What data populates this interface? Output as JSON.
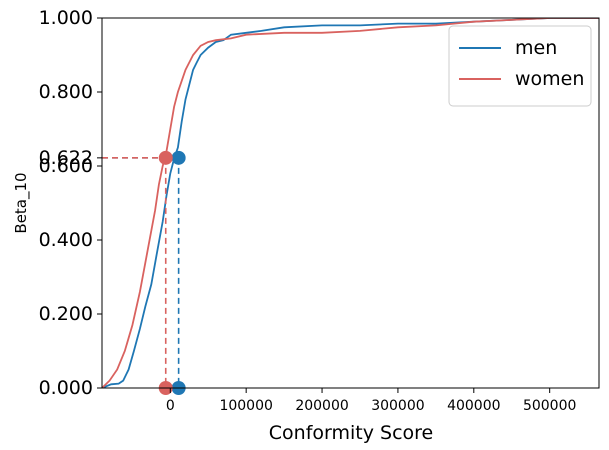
{
  "chart_data": {
    "type": "line",
    "title": "",
    "xlabel": "Conformity Score",
    "ylabel": "Beta_10",
    "xlim": [
      -90000,
      565000
    ],
    "ylim": [
      0,
      1
    ],
    "x_ticks": [
      {
        "value": 0,
        "label": "0"
      },
      {
        "value": 100000,
        "label": "100000"
      },
      {
        "value": 200000,
        "label": "200000"
      },
      {
        "value": 300000,
        "label": "300000"
      },
      {
        "value": 400000,
        "label": "400000"
      },
      {
        "value": 500000,
        "label": "500000"
      }
    ],
    "y_ticks": [
      {
        "value": 0.0,
        "label": "0.000"
      },
      {
        "value": 0.2,
        "label": "0.200"
      },
      {
        "value": 0.4,
        "label": "0.400"
      },
      {
        "value": 0.6,
        "label": "0.600"
      },
      {
        "value": 0.622,
        "label": "0.622"
      },
      {
        "value": 0.8,
        "label": "0.800"
      },
      {
        "value": 1.0,
        "label": "1.000"
      }
    ],
    "legend_position": "top-right",
    "grid": false,
    "series": [
      {
        "name": "men",
        "color": "#1f77b4",
        "x": [
          -90000,
          -78000,
          -68000,
          -62000,
          -55000,
          -48000,
          -40000,
          -33000,
          -25000,
          -18000,
          -10000,
          -5000,
          0,
          5000,
          10000,
          15000,
          20000,
          25000,
          30000,
          35000,
          40000,
          50000,
          60000,
          70000,
          80000,
          100000,
          120000,
          150000,
          200000,
          250000,
          300000,
          350000,
          400000,
          450000,
          500000,
          520000,
          565000
        ],
        "y": [
          0.0,
          0.01,
          0.012,
          0.02,
          0.05,
          0.1,
          0.16,
          0.22,
          0.28,
          0.36,
          0.45,
          0.52,
          0.58,
          0.62,
          0.65,
          0.72,
          0.78,
          0.82,
          0.86,
          0.88,
          0.9,
          0.92,
          0.935,
          0.94,
          0.955,
          0.96,
          0.965,
          0.975,
          0.98,
          0.98,
          0.985,
          0.985,
          0.99,
          0.995,
          1.0,
          1.0,
          1.0
        ]
      },
      {
        "name": "women",
        "color": "#d9625f",
        "x": [
          -90000,
          -80000,
          -70000,
          -60000,
          -50000,
          -40000,
          -30000,
          -20000,
          -15000,
          -10000,
          -5000,
          0,
          5000,
          10000,
          15000,
          20000,
          30000,
          40000,
          50000,
          60000,
          80000,
          100000,
          150000,
          200000,
          250000,
          300000,
          350000,
          400000,
          450000,
          500000,
          565000
        ],
        "y": [
          0.0,
          0.02,
          0.05,
          0.1,
          0.17,
          0.26,
          0.37,
          0.48,
          0.55,
          0.6,
          0.64,
          0.7,
          0.76,
          0.8,
          0.83,
          0.86,
          0.9,
          0.925,
          0.935,
          0.94,
          0.945,
          0.955,
          0.96,
          0.96,
          0.965,
          0.975,
          0.98,
          0.99,
          0.995,
          1.0,
          1.0
        ]
      }
    ],
    "markers": [
      {
        "series": "men",
        "color": "#1f77b4",
        "x": 11000,
        "y": 0.622
      },
      {
        "series": "women",
        "color": "#d9625f",
        "x": -6000,
        "y": 0.622
      }
    ]
  }
}
